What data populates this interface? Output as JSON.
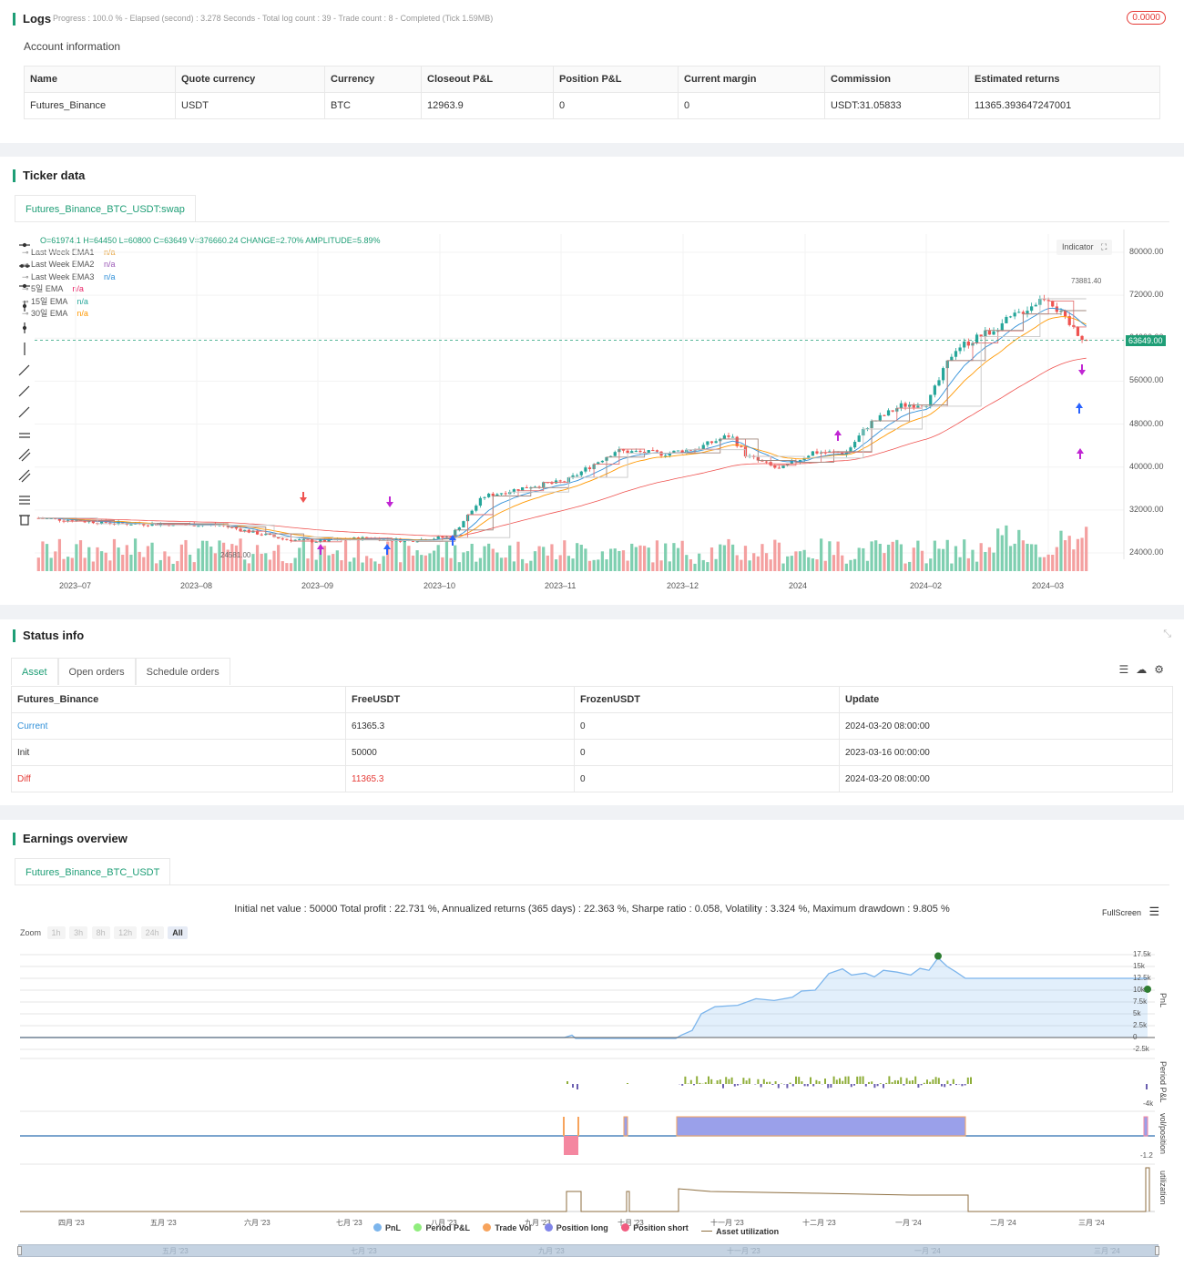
{
  "logs": {
    "title": "Logs",
    "progress": "Progress : 100.0 % - Elapsed (second) : 3.278  Seconds - Total log count : 39 - Trade count : 8 - Completed (Tick 1.59MB)",
    "badge": "0.0000"
  },
  "account": {
    "title": "Account information",
    "headers": [
      "Name",
      "Quote currency",
      "Currency",
      "Closeout P&L",
      "Position P&L",
      "Current margin",
      "Commission",
      "Estimated returns"
    ],
    "row": [
      "Futures_Binance",
      "USDT",
      "BTC",
      "12963.9",
      "0",
      "0",
      "USDT:31.05833",
      "11365.393647247001"
    ]
  },
  "ticker": {
    "title": "Ticker data",
    "tab": "Futures_Binance_BTC_USDT:swap",
    "ohlc": "O=61974.1 H=64450 L=60800 C=63649 V=376660.24 CHANGE=2.70% AMPLITUDE=5.89%",
    "indicator_btn": "Indicator",
    "legend": [
      {
        "label": "Last Week EMA1",
        "value": "n/a",
        "color": "#e6a23c"
      },
      {
        "label": "Last Week EMA2",
        "value": "n/a",
        "color": "#9b59b6"
      },
      {
        "label": "Last Week EMA3",
        "value": "n/a",
        "color": "#2f8fd8"
      },
      {
        "label": "5일 EMA",
        "value": "n/a",
        "color": "#e91e63"
      },
      {
        "label": "15일 EMA",
        "value": "n/a",
        "color": "#26a69a"
      },
      {
        "label": "30일 EMA",
        "value": "n/a",
        "color": "#ff9800"
      }
    ],
    "price_axis": [
      "80000.00",
      "72000.00",
      "64000.00",
      "56000.00",
      "48000.00",
      "40000.00",
      "32000.00",
      "24000.00"
    ],
    "last_price": "63649.00",
    "high_label": "73881.40",
    "low_label": "24581.00",
    "date_axis": [
      "2023–07",
      "2023–08",
      "2023–09",
      "2023–10",
      "2023–11",
      "2023–12",
      "2024",
      "2024–02",
      "2024–03"
    ]
  },
  "status": {
    "title": "Status info",
    "tabs": [
      "Asset",
      "Open orders",
      "Schedule orders"
    ],
    "headers": [
      "Futures_Binance",
      "FreeUSDT",
      "FrozenUSDT",
      "Update"
    ],
    "rows": [
      {
        "name": "Current",
        "free": "61365.3",
        "frozen": "0",
        "update": "2024-03-20 08:00:00"
      },
      {
        "name": "Init",
        "free": "50000",
        "frozen": "0",
        "update": "2023-03-16 00:00:00"
      },
      {
        "name": "Diff",
        "free": "11365.3",
        "frozen": "0",
        "update": "2024-03-20 08:00:00"
      }
    ]
  },
  "earnings": {
    "title": "Earnings overview",
    "tab": "Futures_Binance_BTC_USDT",
    "summary": "Initial net value : 50000 Total profit : 22.731 %, Annualized returns (365 days) : 22.363 %, Sharpe ratio : 0.058, Volatility : 3.324 %, Maximum drawdown : 9.805 %",
    "fullscreen": "FullScreen",
    "zoom_label": "Zoom",
    "zoom_buttons": [
      "1h",
      "3h",
      "8h",
      "12h",
      "24h",
      "All"
    ],
    "pnl_axis": [
      "17.5k",
      "15k",
      "12.5k",
      "10k",
      "7.5k",
      "5k",
      "2.5k",
      "0",
      "-2.5k"
    ],
    "period_axis": [
      "-4k"
    ],
    "pos_axis": [
      "-1.2"
    ],
    "axis_titles": [
      "PnL",
      "Period P&L",
      "vol/position",
      "utilization"
    ],
    "months": [
      "四月 '23",
      "五月 '23",
      "六月 '23",
      "七月 '23",
      "八月 '23",
      "九月 '23",
      "十月 '23",
      "十一月 '23",
      "十二月 '23",
      "一月 '24",
      "二月 '24",
      "三月 '24"
    ],
    "nav_months": [
      "五月 '23",
      "七月 '23",
      "九月 '23",
      "十一月 '23",
      "一月 '24",
      "三月 '24"
    ],
    "legend": [
      {
        "label": "PnL",
        "color": "#7cb5ec"
      },
      {
        "label": "Period P&L",
        "color": "#90ed7d"
      },
      {
        "label": "Trade Vol",
        "color": "#f7a35c"
      },
      {
        "label": "Position long",
        "color": "#8085e9"
      },
      {
        "label": "Position short",
        "color": "#f15c80"
      },
      {
        "label": "Asset utilization",
        "color": "#8d6e3f"
      }
    ]
  }
}
